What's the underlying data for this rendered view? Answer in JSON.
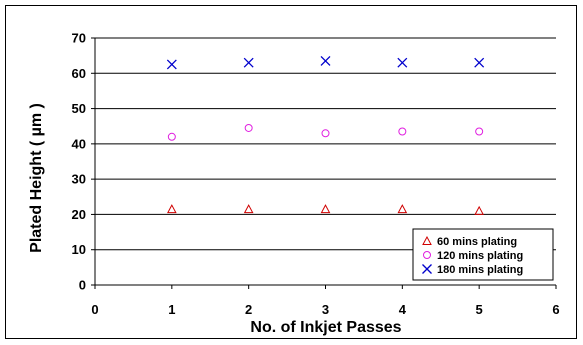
{
  "chart_data": {
    "type": "scatter",
    "xlabel": "No. of Inkjet Passes",
    "ylabel": "Plated Height ( µm )",
    "xlim": [
      0,
      6
    ],
    "ylim": [
      0,
      70
    ],
    "x_ticks": [
      "0",
      "1",
      "2",
      "3",
      "4",
      "5",
      "6"
    ],
    "y_ticks": [
      "0",
      "10",
      "20",
      "30",
      "40",
      "50",
      "60",
      "70"
    ],
    "grid": "horizontal",
    "legend_position": "bottom-right",
    "series": [
      {
        "name": "60 mins plating",
        "marker": "triangle",
        "color": "#d00000",
        "x": [
          1,
          2,
          3,
          4,
          5
        ],
        "y": [
          21.5,
          21.5,
          21.5,
          21.5,
          21
        ]
      },
      {
        "name": "120 mins plating",
        "marker": "circle",
        "color": "#e020e0",
        "x": [
          1,
          2,
          3,
          4,
          5
        ],
        "y": [
          42,
          44.5,
          43,
          43.5,
          43.5
        ]
      },
      {
        "name": "180 mins plating",
        "marker": "x",
        "color": "#0000cc",
        "x": [
          1,
          2,
          3,
          4,
          5
        ],
        "y": [
          62.5,
          63,
          63.5,
          63,
          63
        ]
      }
    ]
  }
}
